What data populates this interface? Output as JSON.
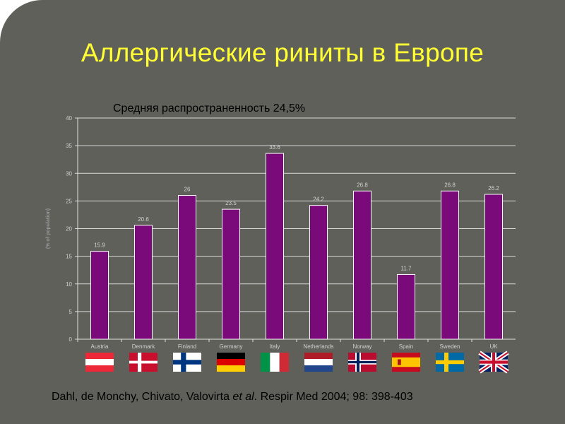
{
  "slide": {
    "title": "Аллергические риниты в Европе",
    "subtitle": "Средняя распространенность 24,5%",
    "citation": {
      "authors": "Dahl, de Monchy, Chivato, Valovirta ",
      "etal": "et al",
      "rest": ". Respir Med 2004; 98: 398-403"
    }
  },
  "chart_data": {
    "type": "bar",
    "categories": [
      "Austria",
      "Denmark",
      "Finland",
      "Germany",
      "Italy",
      "Netherlands",
      "Norway",
      "Spain",
      "Sweden",
      "UK"
    ],
    "values": [
      15.9,
      20.6,
      26,
      23.5,
      33.6,
      24.2,
      26.8,
      11.7,
      26.8,
      26.2
    ],
    "data_labels": [
      "15.9",
      "20.6",
      "26",
      "23.5",
      "33.6",
      "24.2",
      "26.8",
      "11.7",
      "26.8",
      "26.2"
    ],
    "ylabel": "(% of population)",
    "ylim": [
      0,
      40
    ],
    "yticks": [
      0,
      5,
      10,
      15,
      20,
      25,
      30,
      35,
      40
    ],
    "grid": true,
    "bar_color": "#7a0a7a",
    "flags": [
      "austria-flag-icon",
      "denmark-flag-icon",
      "finland-flag-icon",
      "germany-flag-icon",
      "italy-flag-icon",
      "netherlands-flag-icon",
      "norway-flag-icon",
      "spain-flag-icon",
      "sweden-flag-icon",
      "uk-flag-icon"
    ]
  }
}
